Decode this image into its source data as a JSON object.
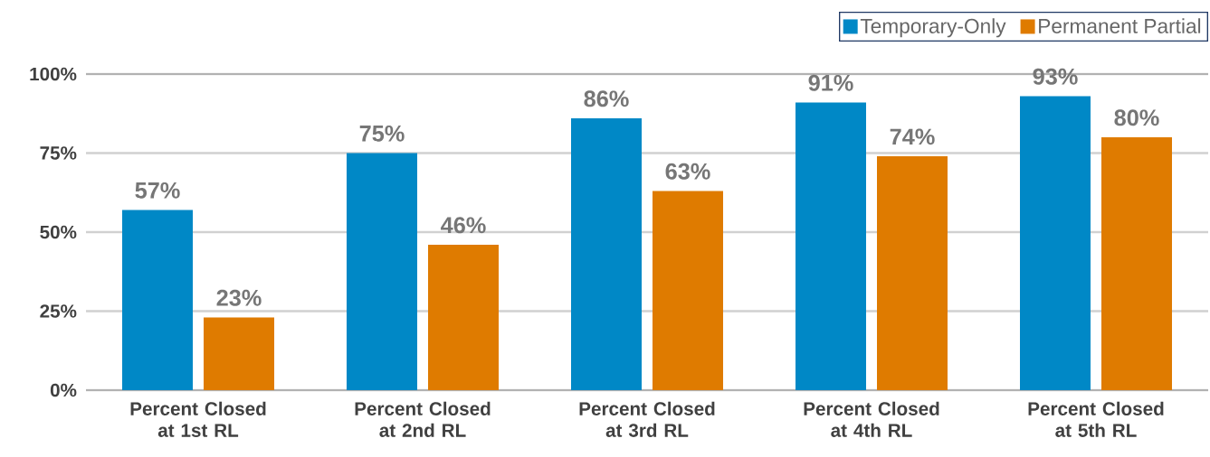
{
  "chart_data": {
    "type": "bar",
    "categories": [
      "Percent Closed at 1st RL",
      "Percent Closed at 2nd RL",
      "Percent Closed at 3rd RL",
      "Percent Closed at 4th RL",
      "Percent Closed at 5th RL"
    ],
    "series": [
      {
        "name": "Temporary-Only",
        "color": "#0088c6",
        "values": [
          57,
          75,
          86,
          91,
          93
        ],
        "value_labels": [
          "57%",
          "75%",
          "86%",
          "91%",
          "93%"
        ]
      },
      {
        "name": "Permanent Partial",
        "color": "#df7b00",
        "values": [
          23,
          46,
          63,
          74,
          80
        ],
        "value_labels": [
          "23%",
          "46%",
          "63%",
          "74%",
          "80%"
        ]
      }
    ],
    "ylim": [
      0,
      100
    ],
    "yticks": [
      {
        "value": 0,
        "label": "0%"
      },
      {
        "value": 25,
        "label": "25%"
      },
      {
        "value": 50,
        "label": "50%"
      },
      {
        "value": 75,
        "label": "75%"
      },
      {
        "value": 100,
        "label": "100%"
      }
    ],
    "grid": "y",
    "legend": "top right"
  }
}
